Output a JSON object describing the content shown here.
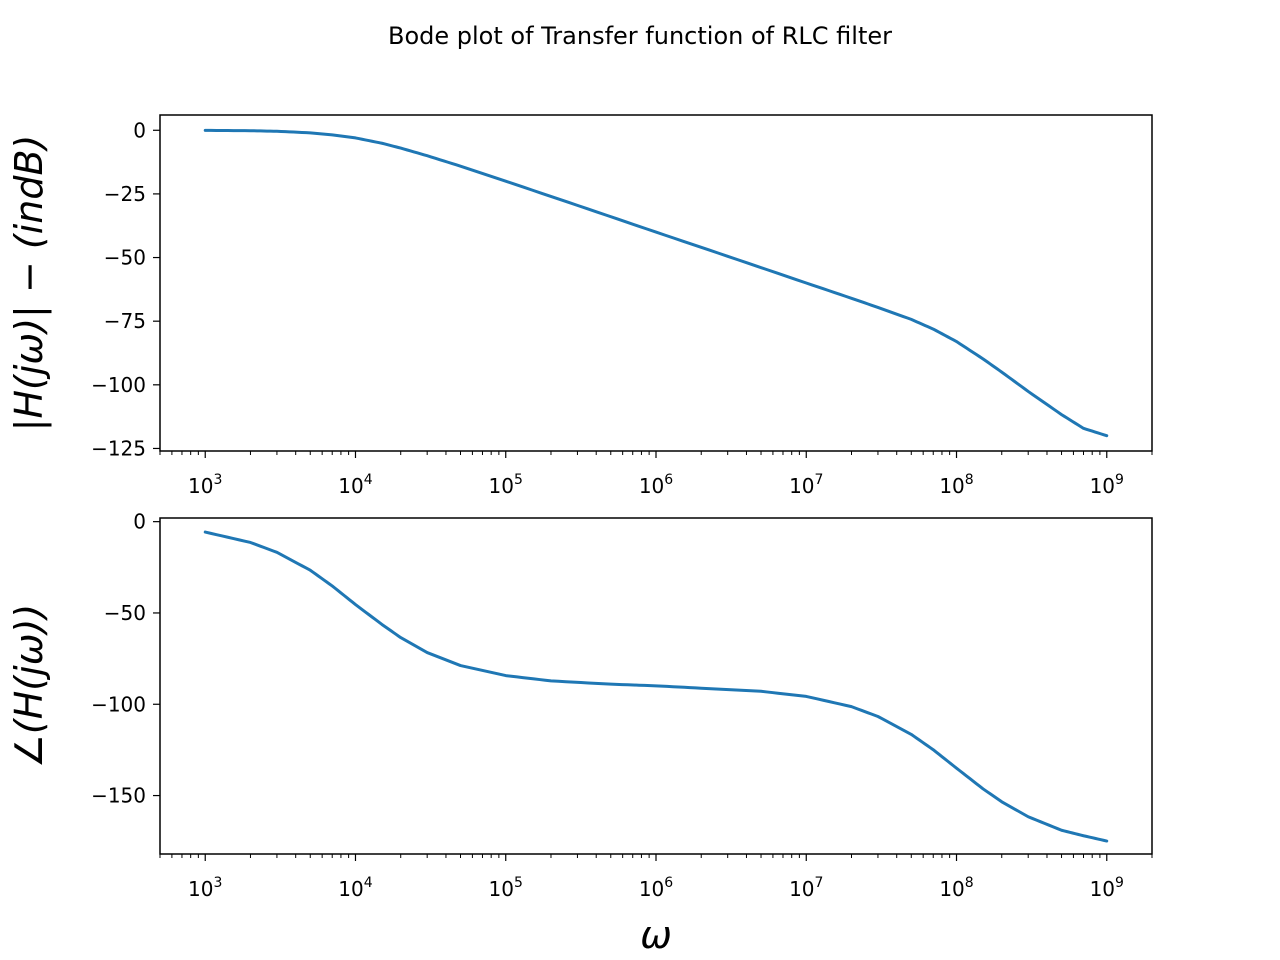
{
  "figure": {
    "title": "Bode plot of Transfer function of RLC filter",
    "line_color": "#1f77b4"
  },
  "chart_data": [
    {
      "type": "line",
      "panel": "magnitude",
      "xscale": "log",
      "xlim": [
        500,
        2000000000
      ],
      "ylim": [
        -126,
        6
      ],
      "xlabel": "ω",
      "ylabel": "|H(jω)| − (indB)",
      "x_tick_values": [
        1000,
        10000,
        100000,
        1000000,
        10000000,
        100000000,
        1000000000
      ],
      "x_tick_base": "10",
      "x_tick_exponents": [
        "3",
        "4",
        "5",
        "6",
        "7",
        "8",
        "9"
      ],
      "y_ticks": [
        0,
        -25,
        -50,
        -75,
        -100,
        -125
      ],
      "y_tick_labels": [
        "0",
        "−25",
        "−50",
        "−75",
        "−100",
        "−125"
      ],
      "series": [
        {
          "x": [
            1000,
            2000,
            3000,
            5000,
            7000,
            10000,
            15000,
            20000,
            30000,
            50000,
            100000,
            300000,
            1000000,
            3000000,
            10000000,
            20000000,
            30000000,
            50000000,
            70000000,
            100000000,
            150000000,
            200000000,
            300000000,
            500000000,
            700000000,
            1000000000
          ],
          "values": [
            -0.04,
            -0.17,
            -0.4,
            -1.0,
            -1.8,
            -3.0,
            -5.1,
            -7.0,
            -10.0,
            -14.1,
            -20.0,
            -29.5,
            -40.0,
            -49.5,
            -60.0,
            -66.0,
            -69.6,
            -74.3,
            -78.1,
            -83.0,
            -89.8,
            -95.0,
            -102.6,
            -111.7,
            -117.1,
            -120.0
          ]
        }
      ]
    },
    {
      "type": "line",
      "panel": "phase",
      "xscale": "log",
      "xlim": [
        500,
        2000000000
      ],
      "ylim": [
        -182,
        2
      ],
      "xlabel": "ω",
      "ylabel": "∠(H(jω))",
      "x_tick_values": [
        1000,
        10000,
        100000,
        1000000,
        10000000,
        100000000,
        1000000000
      ],
      "x_tick_base": "10",
      "x_tick_exponents": [
        "3",
        "4",
        "5",
        "6",
        "7",
        "8",
        "9"
      ],
      "y_ticks": [
        0,
        -50,
        -100,
        -150
      ],
      "y_tick_labels": [
        "0",
        "−50",
        "−100",
        "−150"
      ],
      "series": [
        {
          "x": [
            1000,
            2000,
            3000,
            5000,
            7000,
            10000,
            15000,
            20000,
            30000,
            50000,
            100000,
            200000,
            500000,
            1000000,
            2000000,
            5000000,
            10000000,
            20000000,
            30000000,
            50000000,
            70000000,
            100000000,
            150000000,
            200000000,
            300000000,
            500000000,
            700000000,
            1000000000
          ],
          "values": [
            -5.7,
            -11.4,
            -16.8,
            -26.6,
            -35.2,
            -45.4,
            -56.3,
            -63.5,
            -71.7,
            -78.8,
            -84.3,
            -87.2,
            -89.0,
            -89.9,
            -91.2,
            -92.9,
            -95.7,
            -101.3,
            -106.7,
            -116.5,
            -124.9,
            -135.0,
            -146.3,
            -153.4,
            -161.6,
            -169.0,
            -172.0,
            -174.9
          ]
        }
      ]
    }
  ]
}
